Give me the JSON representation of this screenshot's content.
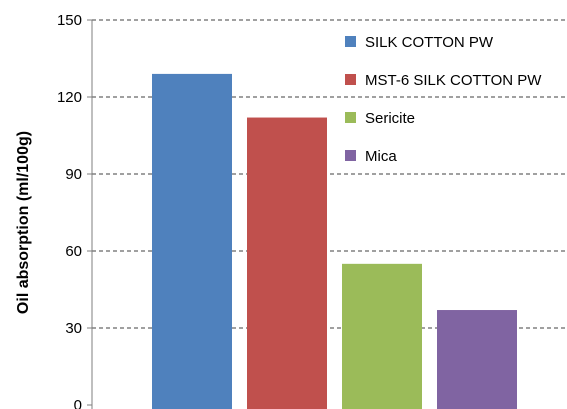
{
  "chart_data": {
    "type": "bar",
    "title": "",
    "xlabel": "",
    "ylabel": "Oil absorption (ml/100g)",
    "ylim": [
      0,
      150
    ],
    "yticks": [
      0,
      30,
      60,
      90,
      120,
      150
    ],
    "grid": "horizontal dashed",
    "legend_position": "top-right",
    "series": [
      {
        "name": "SILK COTTON PW",
        "value": 129,
        "color": "#4F81BD"
      },
      {
        "name": "MST-6 SILK COTTON PW",
        "value": 112,
        "color": "#C0504D"
      },
      {
        "name": "Sericite",
        "value": 55,
        "color": "#9BBB59"
      },
      {
        "name": "Mica",
        "value": 37,
        "color": "#8064A2"
      }
    ]
  }
}
